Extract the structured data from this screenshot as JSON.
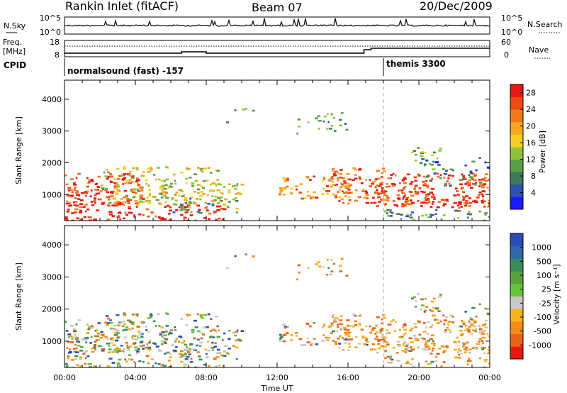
{
  "header": {
    "station": "Rankin Inlet (fitACF)",
    "beam": "Beam 07",
    "date": "20/Dec/2009"
  },
  "left_labels": {
    "nsky": "N.Sky",
    "freq": "Freq.",
    "mhz": "[MHz]",
    "cpid": "CPID"
  },
  "right_labels": {
    "nsearch": "N.Search",
    "nave": "Nave"
  },
  "nsky_axis": {
    "top": "10^5",
    "bottom": "10^0"
  },
  "freq_axis": {
    "top": "18",
    "bottom": "8"
  },
  "nave_axis": {
    "top": "60",
    "bottom": "0"
  },
  "cpid_segments": [
    {
      "label": "normalsound (fast) -157",
      "start_hour": 0
    },
    {
      "label": "themis 3300",
      "start_hour": 18.0
    }
  ],
  "power_panel": {
    "ylabel": "Slant Range [km]",
    "yticks": [
      "1000",
      "2000",
      "3000",
      "4000"
    ],
    "colorbar_label": "Power [dB]",
    "colorbar_ticks": [
      "4",
      "8",
      "12",
      "16",
      "20",
      "24",
      "28"
    ],
    "colors": [
      "#1a1aff",
      "#2c4fb0",
      "#3d7a5a",
      "#5a9e4a",
      "#8fc43a",
      "#f2d020",
      "#f5a623",
      "#f07a1a",
      "#ee4a14",
      "#e81810"
    ]
  },
  "velocity_panel": {
    "ylabel": "Slant Range [km]",
    "yticks": [
      "1000",
      "2000",
      "3000",
      "4000"
    ],
    "colorbar_label": "Velocity [m s⁻¹]",
    "colorbar_ticks": [
      "1000",
      "500",
      "100",
      "25",
      "-25",
      "-100",
      "-500",
      "-1000"
    ],
    "colors": [
      "#2a4bb8",
      "#2e6aa8",
      "#3a8a5a",
      "#5aa03c",
      "#66c33a",
      "#c8c8c8",
      "#f5b31e",
      "#f28c18",
      "#ee6018",
      "#e81810"
    ]
  },
  "xaxis": {
    "ticks": [
      "00:00",
      "04:00",
      "08:00",
      "12:00",
      "16:00",
      "20:00",
      "00:00"
    ],
    "label": "Time UT"
  },
  "chart_data": [
    {
      "type": "line",
      "title": "N.Sky",
      "x_range_hours": [
        0,
        24
      ],
      "y_scale": "log",
      "ylim": [
        "10^0",
        "10^5"
      ]
    },
    {
      "type": "line",
      "title": "Freq.",
      "ylim": [
        8,
        18
      ],
      "series": [
        {
          "name": "Freq.",
          "x_hours": [
            0,
            6.6,
            6.6,
            8.0,
            8.0,
            15.7,
            16.9,
            16.9,
            17.3,
            17.3,
            24
          ],
          "values": [
            10.2,
            10.2,
            11.0,
            11.0,
            10.2,
            10.2,
            10.2,
            12.3,
            12.3,
            13.2,
            13.2
          ]
        }
      ]
    },
    {
      "type": "heatmap",
      "title": "Power",
      "x_range_hours": [
        0,
        24
      ],
      "ylim_km": [
        180,
        4600
      ],
      "colorbar_range_db": [
        0,
        30
      ]
    },
    {
      "type": "heatmap",
      "title": "Velocity",
      "x_range_hours": [
        0,
        24
      ],
      "ylim_km": [
        180,
        4600
      ],
      "colorbar_range_ms": [
        -1000,
        1000
      ]
    }
  ]
}
